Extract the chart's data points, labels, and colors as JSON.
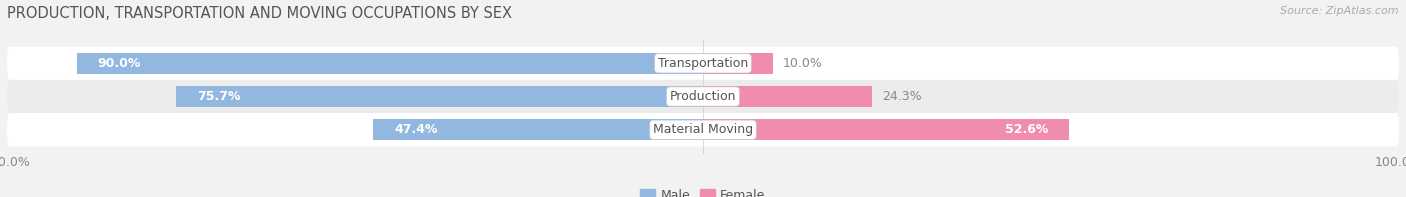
{
  "title": "PRODUCTION, TRANSPORTATION AND MOVING OCCUPATIONS BY SEX",
  "source": "Source: ZipAtlas.com",
  "categories": [
    "Transportation",
    "Production",
    "Material Moving"
  ],
  "male_pct": [
    90.0,
    75.7,
    47.4
  ],
  "female_pct": [
    10.0,
    24.3,
    52.6
  ],
  "male_color": "#92b8e0",
  "female_color": "#f08cac",
  "male_label": "Male",
  "female_label": "Female",
  "bar_height": 0.62,
  "bg_color": "#f2f2f2",
  "row_colors": [
    "#ffffff",
    "#ececec",
    "#ffffff"
  ],
  "title_fontsize": 10.5,
  "label_fontsize": 9,
  "source_fontsize": 8,
  "tick_label_color": "#888888",
  "bar_label_color_inside": "#ffffff",
  "bar_label_color_outside": "#888888",
  "category_label_color": "#555555"
}
